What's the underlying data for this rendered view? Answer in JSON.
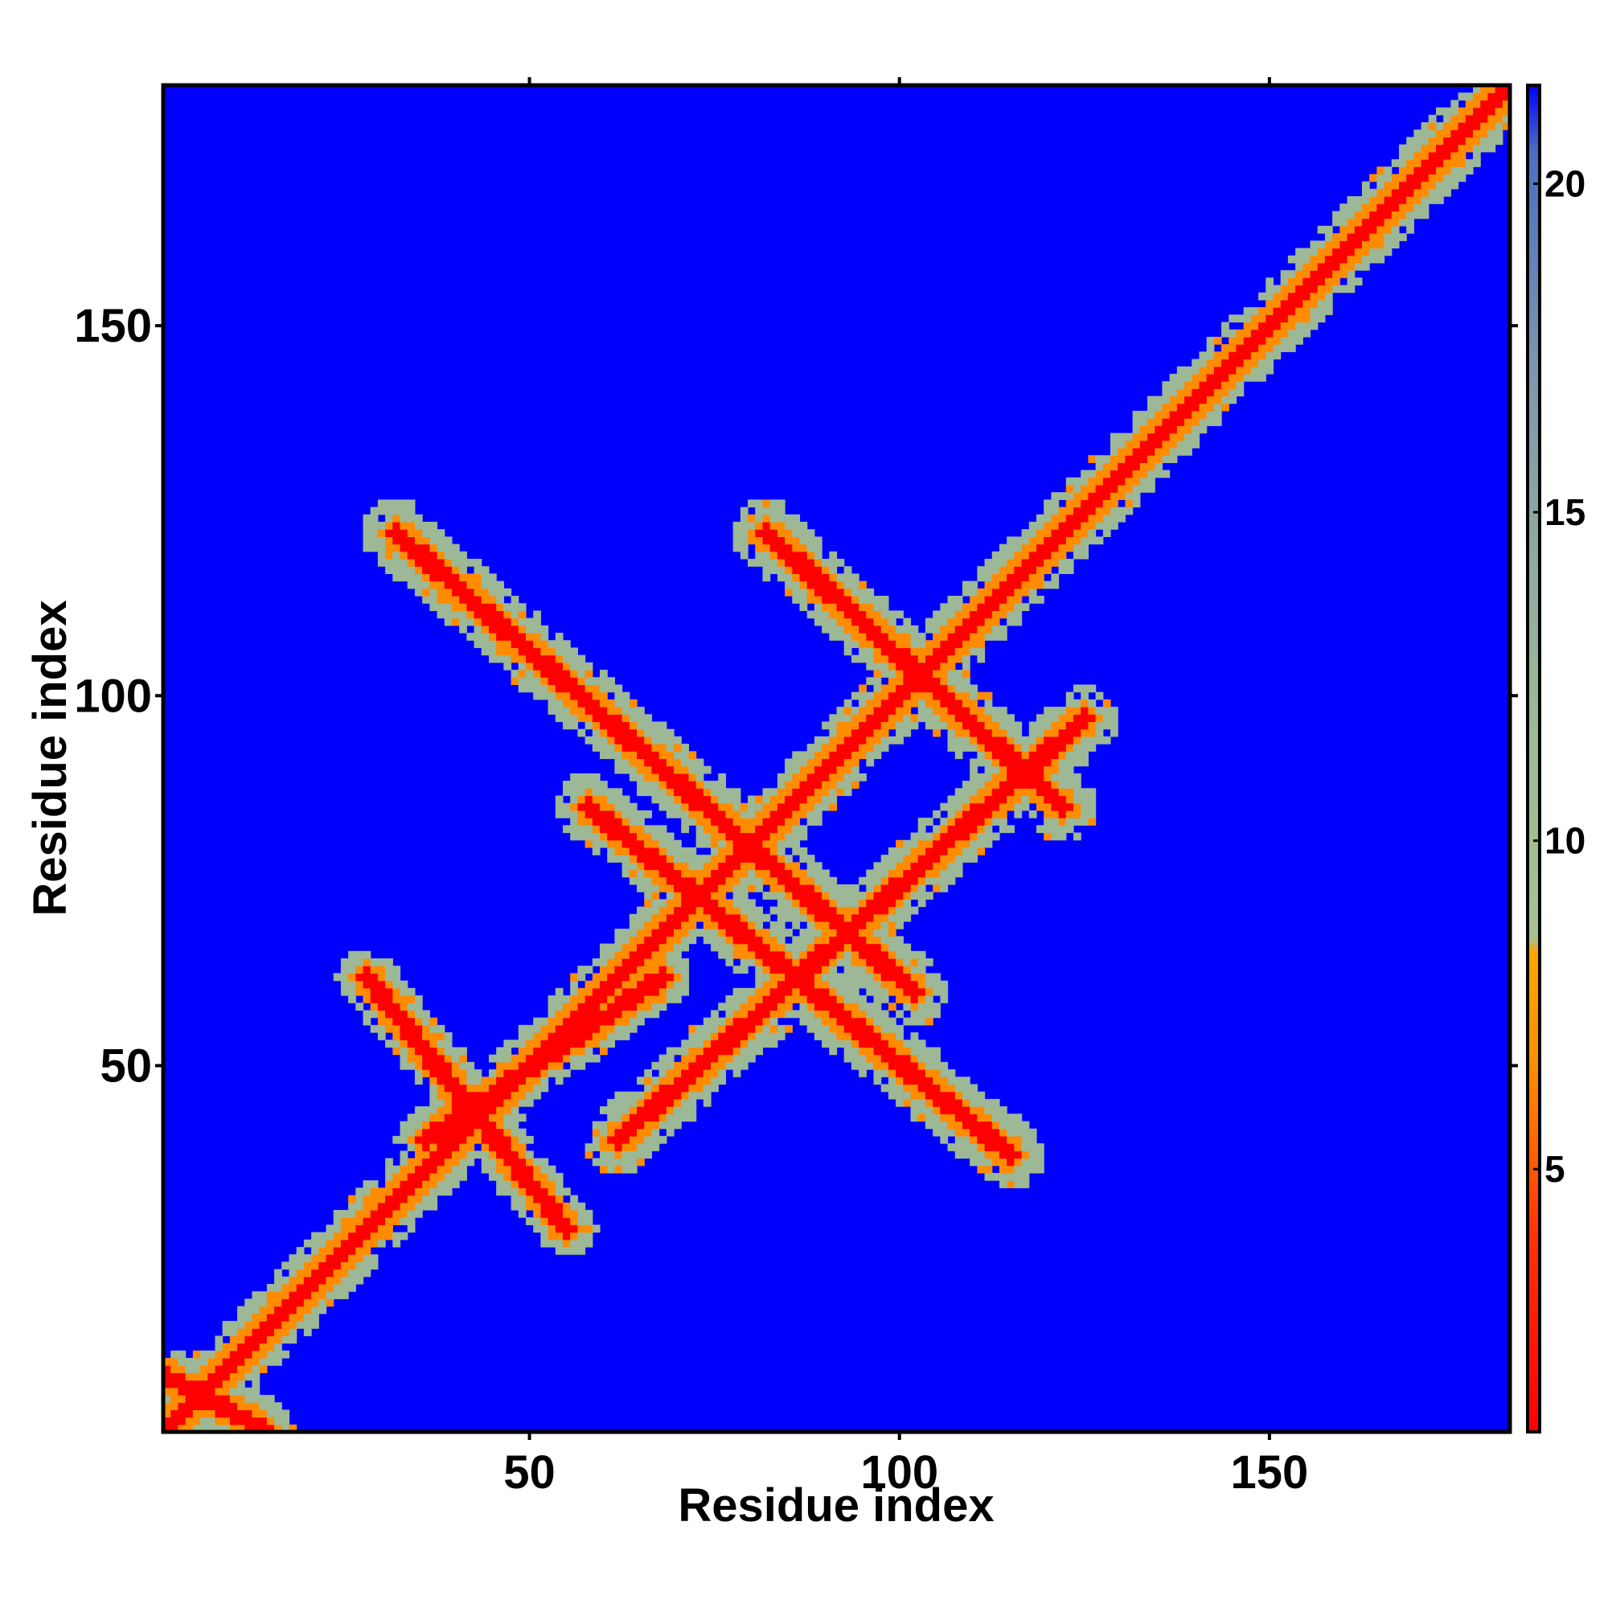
{
  "chart_data": {
    "type": "heatmap",
    "title": "",
    "xlabel": "Residue index",
    "ylabel": "Residue index",
    "xlim": [
      1,
      182
    ],
    "ylim": [
      1,
      182
    ],
    "x_ticks": [
      50,
      100,
      150
    ],
    "y_ticks": [
      50,
      100,
      150
    ],
    "grid": false,
    "matrix_size": 182,
    "background_value": 21,
    "colorbar": {
      "range": [
        1,
        21.5
      ],
      "ticks": [
        5,
        10,
        15,
        20
      ],
      "orientation": "vertical",
      "placement": "right",
      "stops": [
        {
          "value": 1,
          "color": "#ff0000"
        },
        {
          "value": 4,
          "color": "#ff3300"
        },
        {
          "value": 6.5,
          "color": "#ff8c00"
        },
        {
          "value": 8.3,
          "color": "#ffa500"
        },
        {
          "value": 8.5,
          "color": "#a8c090"
        },
        {
          "value": 12,
          "color": "#9cb896"
        },
        {
          "value": 17,
          "color": "#7f99ad"
        },
        {
          "value": 20.5,
          "color": "#4a6fc0"
        },
        {
          "value": 21.5,
          "color": "#0000ff"
        }
      ]
    },
    "colors": {
      "background": "#0000ff",
      "far": "#9cb896",
      "mid": "#ff8c00",
      "near": "#ff0000"
    },
    "features": [
      {
        "kind": "diagonal",
        "from": 1,
        "to": 182,
        "width": 4.5
      },
      {
        "kind": "segment",
        "start": [
          1,
          8
        ],
        "end": [
          14,
          1
        ],
        "width": 4
      },
      {
        "kind": "segment",
        "start": [
          28,
          62
        ],
        "end": [
          55,
          28
        ],
        "width": 4
      },
      {
        "kind": "segment",
        "start": [
          36,
          40
        ],
        "end": [
          68,
          62
        ],
        "width": 4
      },
      {
        "kind": "segment",
        "start": [
          32,
          122
        ],
        "end": [
          102,
          60
        ],
        "width": 4.5
      },
      {
        "kind": "segment",
        "start": [
          62,
          40
        ],
        "end": [
          125,
          97
        ],
        "width": 4.5
      },
      {
        "kind": "segment",
        "start": [
          58,
          85
        ],
        "end": [
          115,
          38
        ],
        "width": 4.5
      },
      {
        "kind": "segment",
        "start": [
          82,
          122
        ],
        "end": [
          122,
          85
        ],
        "width": 4.5
      }
    ]
  }
}
